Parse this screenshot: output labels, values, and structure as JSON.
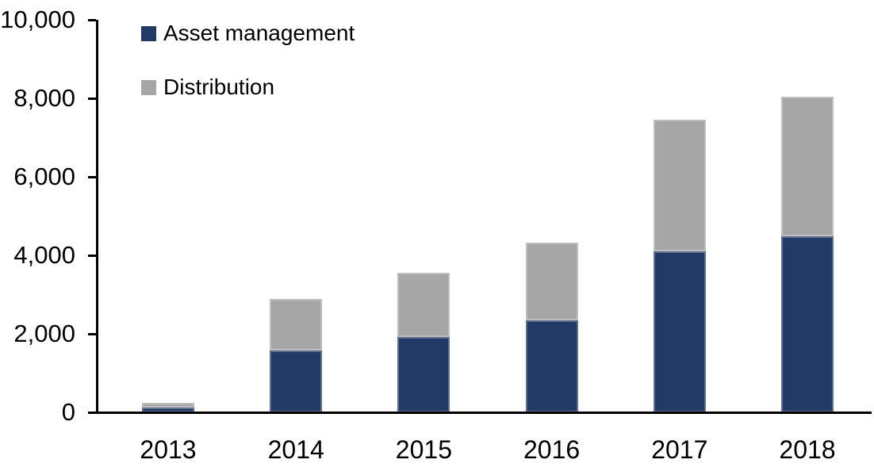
{
  "chart_data": {
    "type": "bar",
    "stacked": true,
    "title": "",
    "xlabel": "",
    "ylabel": "",
    "categories": [
      "2013",
      "2014",
      "2015",
      "2016",
      "2017",
      "2018"
    ],
    "series": [
      {
        "name": "Asset management",
        "color": "#213A66",
        "values": [
          120,
          1575,
          1920,
          2340,
          4100,
          4480
        ]
      },
      {
        "name": "Distribution",
        "color": "#A6A6A6",
        "values": [
          120,
          1310,
          1630,
          1980,
          3350,
          3570
        ]
      }
    ],
    "ylim": [
      0,
      10000
    ],
    "ytick_interval": 2000,
    "ytick_labels": [
      "0",
      "2,000",
      "4,000",
      "6,000",
      "8,000",
      "10,000"
    ],
    "grid": false,
    "legend_position": "top-left",
    "axis_color": "#000000",
    "background_color": "#FFFFFF"
  }
}
